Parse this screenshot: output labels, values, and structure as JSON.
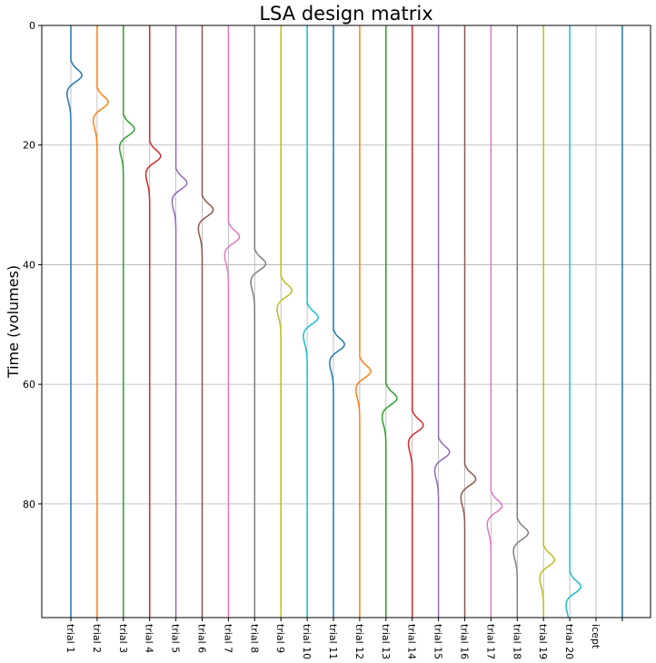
{
  "chart_data": {
    "type": "line",
    "title": "LSA design matrix",
    "ylabel": "Time (volumes)",
    "xlabel": "",
    "ylim": [
      99,
      0
    ],
    "yticks": [
      0,
      20,
      40,
      60,
      80
    ],
    "grid": true,
    "columns": [
      "trial 1",
      "trial 2",
      "trial 3",
      "trial 4",
      "trial 5",
      "trial 6",
      "trial 7",
      "trial 8",
      "trial 9",
      "trial 10",
      "trial 11",
      "trial 12",
      "trial 13",
      "trial 14",
      "trial 15",
      "trial 16",
      "trial 17",
      "trial 18",
      "trial 19",
      "trial 20",
      "icept",
      ""
    ],
    "onsets": [
      6,
      10.5,
      15,
      19.5,
      24,
      28.5,
      33,
      37.5,
      42,
      46.5,
      51,
      55.5,
      60,
      64.5,
      69,
      73.5,
      78,
      82.5,
      87,
      91.5
    ],
    "hrf_peak_amplitude": 0.9,
    "hrf_undershoot_amplitude": 0.3,
    "constant_column": "icept",
    "colors": [
      "#1f77b4",
      "#ff7f0e",
      "#2ca02c",
      "#d62728",
      "#9467bd",
      "#8c564b",
      "#e377c2",
      "#7f7f7f",
      "#bcbd22",
      "#17becf"
    ]
  }
}
